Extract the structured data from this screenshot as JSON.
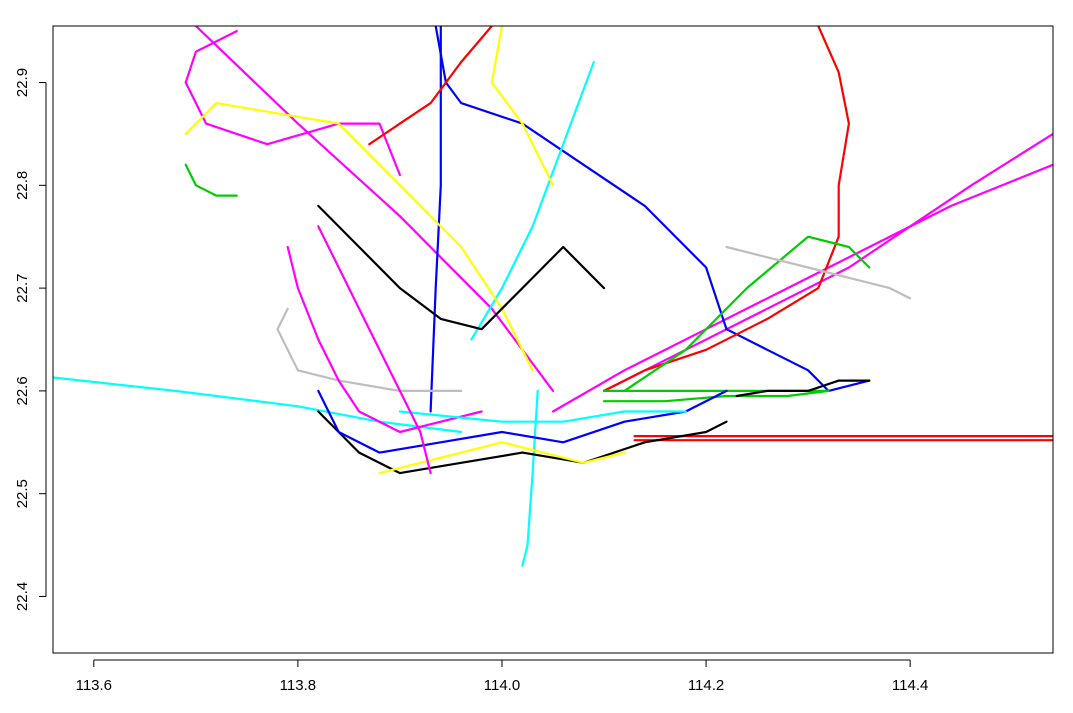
{
  "chart_data": {
    "type": "line",
    "title": "",
    "xlabel": "",
    "ylabel": "",
    "xlim": [
      113.56,
      114.54
    ],
    "ylim": [
      22.345,
      22.955
    ],
    "x_ticks": [
      113.6,
      113.8,
      114.0,
      114.2,
      114.4
    ],
    "x_tick_labels": [
      "113.6",
      "113.8",
      "114.0",
      "114.2",
      "114.4"
    ],
    "y_ticks": [
      22.4,
      22.5,
      22.6,
      22.7,
      22.8,
      22.9
    ],
    "y_tick_labels": [
      "22.4",
      "22.5",
      "22.6",
      "22.7",
      "22.8",
      "22.9"
    ],
    "grid": false,
    "legend": "none",
    "colors": [
      "#000000",
      "#ff0000",
      "#00cd00",
      "#0000ff",
      "#00ffff",
      "#ff00ff",
      "#ffff00",
      "#bebebe"
    ],
    "series": [
      {
        "color": "#ff00ff",
        "x": [
          113.7,
          113.8,
          113.9,
          113.99,
          114.05
        ],
        "y": [
          22.955,
          22.86,
          22.77,
          22.68,
          22.6
        ]
      },
      {
        "color": "#ff00ff",
        "x": [
          114.05,
          114.12,
          114.2,
          114.28,
          114.36,
          114.44,
          114.54
        ],
        "y": [
          22.58,
          22.62,
          22.66,
          22.7,
          22.74,
          22.78,
          22.82
        ]
      },
      {
        "color": "#ff00ff",
        "x": [
          114.1,
          114.18,
          114.26,
          114.34,
          114.4,
          114.46,
          114.54
        ],
        "y": [
          22.6,
          22.64,
          22.68,
          22.72,
          22.76,
          22.8,
          22.85
        ]
      },
      {
        "color": "#ff00ff",
        "x": [
          113.74,
          113.7,
          113.69,
          113.71,
          113.77,
          113.84,
          113.88,
          113.9
        ],
        "y": [
          22.95,
          22.93,
          22.9,
          22.86,
          22.84,
          22.86,
          22.86,
          22.81
        ]
      },
      {
        "color": "#0000ff",
        "x": [
          113.94,
          113.94,
          113.935,
          113.93
        ],
        "y": [
          22.955,
          22.8,
          22.7,
          22.58
        ]
      },
      {
        "color": "#0000ff",
        "x": [
          113.935,
          113.945,
          113.96,
          114.02,
          114.08,
          114.14,
          114.2,
          114.22,
          114.26,
          114.3,
          114.32,
          114.36
        ],
        "y": [
          22.955,
          22.9,
          22.88,
          22.86,
          22.82,
          22.78,
          22.72,
          22.66,
          22.64,
          22.62,
          22.6,
          22.61
        ]
      },
      {
        "color": "#00ffff",
        "x": [
          113.56,
          113.68,
          113.8,
          113.88,
          113.96
        ],
        "y": [
          22.613,
          22.6,
          22.585,
          22.57,
          22.56
        ]
      },
      {
        "color": "#00ffff",
        "x": [
          114.035,
          114.03,
          114.025,
          114.02
        ],
        "y": [
          22.6,
          22.52,
          22.45,
          22.43
        ]
      },
      {
        "color": "#00ffff",
        "x": [
          114.09,
          114.06,
          114.03,
          114.0,
          113.97
        ],
        "y": [
          22.92,
          22.84,
          22.76,
          22.7,
          22.65
        ]
      },
      {
        "color": "#ff0000",
        "x": [
          114.13,
          114.25,
          114.4,
          114.54
        ],
        "y": [
          22.556,
          22.556,
          22.556,
          22.556
        ]
      },
      {
        "color": "#ff0000",
        "x": [
          114.13,
          114.25,
          114.4,
          114.54
        ],
        "y": [
          22.552,
          22.552,
          22.552,
          22.552
        ]
      },
      {
        "color": "#ff0000",
        "x": [
          114.31,
          114.33,
          114.34,
          114.33,
          114.33,
          114.31,
          114.26,
          114.2,
          114.14,
          114.1
        ],
        "y": [
          22.955,
          22.91,
          22.86,
          22.8,
          22.75,
          22.7,
          22.67,
          22.64,
          22.62,
          22.6
        ]
      },
      {
        "color": "#ff0000",
        "x": [
          113.99,
          113.96,
          113.93,
          113.9,
          113.87
        ],
        "y": [
          22.955,
          22.92,
          22.88,
          22.86,
          22.84
        ]
      },
      {
        "color": "#00cd00",
        "x": [
          114.1,
          114.16,
          114.22,
          114.28,
          114.32
        ],
        "y": [
          22.6,
          22.6,
          22.6,
          22.6,
          22.6
        ]
      },
      {
        "color": "#00cd00",
        "x": [
          114.1,
          114.16,
          114.22,
          114.28,
          114.32
        ],
        "y": [
          22.59,
          22.59,
          22.595,
          22.595,
          22.6
        ]
      },
      {
        "color": "#00cd00",
        "x": [
          114.12,
          114.18,
          114.24,
          114.3,
          114.34,
          114.36
        ],
        "y": [
          22.6,
          22.64,
          22.7,
          22.75,
          22.74,
          22.72
        ]
      },
      {
        "color": "#00cd00",
        "x": [
          113.69,
          113.7,
          113.72,
          113.74
        ],
        "y": [
          22.82,
          22.8,
          22.79,
          22.79
        ]
      },
      {
        "color": "#ffff00",
        "x": [
          113.69,
          113.72,
          113.78,
          113.84,
          113.86,
          113.9,
          113.96,
          114.0,
          114.03
        ],
        "y": [
          22.85,
          22.88,
          22.87,
          22.86,
          22.84,
          22.8,
          22.74,
          22.68,
          22.62
        ]
      },
      {
        "color": "#ffff00",
        "x": [
          114.0,
          113.99,
          114.02,
          114.05
        ],
        "y": [
          22.955,
          22.9,
          22.86,
          22.8
        ]
      },
      {
        "color": "#000000",
        "x": [
          114.23,
          114.26,
          114.3,
          114.33,
          114.36
        ],
        "y": [
          22.595,
          22.6,
          22.6,
          22.61,
          22.61
        ]
      },
      {
        "color": "#000000",
        "x": [
          113.82,
          113.86,
          113.9,
          113.94,
          113.98,
          114.02,
          114.06,
          114.1
        ],
        "y": [
          22.78,
          22.74,
          22.7,
          22.67,
          22.66,
          22.7,
          22.74,
          22.7
        ]
      },
      {
        "color": "#bebebe",
        "x": [
          113.79,
          113.78,
          113.8,
          113.84,
          113.9,
          113.96
        ],
        "y": [
          22.68,
          22.66,
          22.62,
          22.61,
          22.6,
          22.6
        ]
      },
      {
        "color": "#bebebe",
        "x": [
          114.22,
          114.26,
          114.3,
          114.34,
          114.38,
          114.4
        ],
        "y": [
          22.74,
          22.73,
          22.72,
          22.71,
          22.7,
          22.69
        ]
      },
      {
        "color": "#000000",
        "x": [
          113.82,
          113.86,
          113.9,
          113.96,
          114.02,
          114.08,
          114.14,
          114.2,
          114.22
        ],
        "y": [
          22.58,
          22.54,
          22.52,
          22.53,
          22.54,
          22.53,
          22.55,
          22.56,
          22.57
        ]
      },
      {
        "color": "#0000ff",
        "x": [
          113.82,
          113.84,
          113.88,
          113.94,
          114.0,
          114.06,
          114.12,
          114.18,
          114.22
        ],
        "y": [
          22.6,
          22.56,
          22.54,
          22.55,
          22.56,
          22.55,
          22.57,
          22.58,
          22.6
        ]
      },
      {
        "color": "#ff00ff",
        "x": [
          113.79,
          113.8,
          113.82,
          113.84,
          113.86,
          113.9,
          113.94,
          113.98
        ],
        "y": [
          22.74,
          22.7,
          22.65,
          22.61,
          22.58,
          22.56,
          22.57,
          22.58
        ]
      },
      {
        "color": "#ffff00",
        "x": [
          113.88,
          113.92,
          113.96,
          114.0,
          114.04,
          114.08,
          114.12
        ],
        "y": [
          22.52,
          22.53,
          22.54,
          22.55,
          22.54,
          22.53,
          22.54
        ]
      },
      {
        "color": "#00ffff",
        "x": [
          113.9,
          113.95,
          114.0,
          114.06,
          114.12,
          114.18
        ],
        "y": [
          22.58,
          22.575,
          22.57,
          22.57,
          22.58,
          22.58
        ]
      },
      {
        "color": "#ff00ff",
        "x": [
          113.82,
          113.84,
          113.86,
          113.88,
          113.9,
          113.92,
          113.93
        ],
        "y": [
          22.76,
          22.72,
          22.68,
          22.64,
          22.6,
          22.56,
          22.52
        ]
      }
    ]
  }
}
